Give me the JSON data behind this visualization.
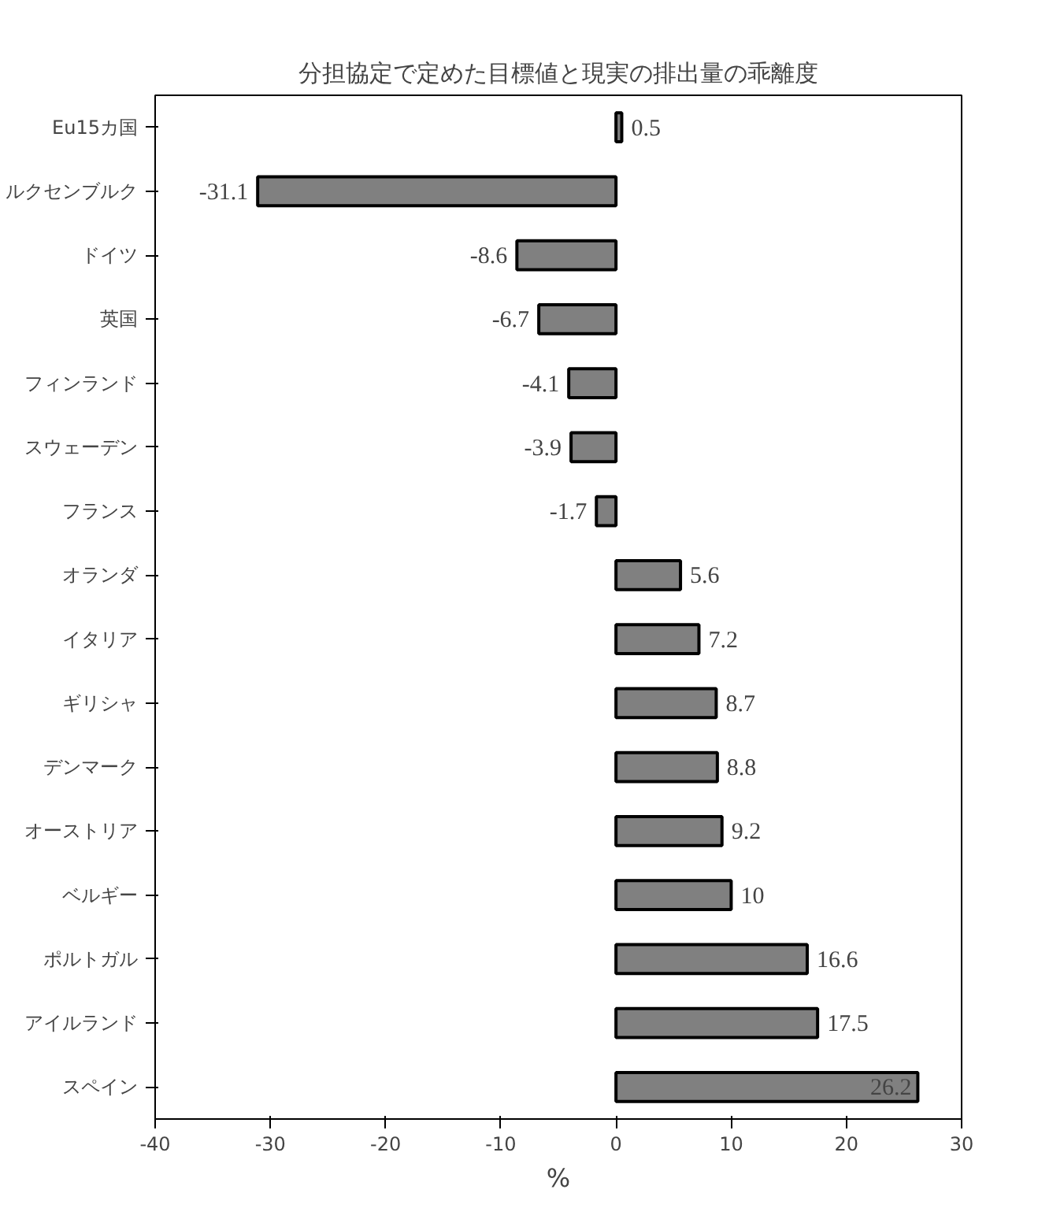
{
  "chart_data": {
    "type": "bar",
    "orientation": "horizontal",
    "title": "分担協定で定めた目標値と現実の排出量の乖離度",
    "xlabel": "%",
    "categories": [
      "Eu15カ国",
      "ルクセンブルク",
      "ドイツ",
      "英国",
      "フィンランド",
      "スウェーデン",
      "フランス",
      "オランダ",
      "イタリア",
      "ギリシャ",
      "デンマーク",
      "オーストリア",
      "ベルギー",
      "ポルトガル",
      "アイルランド",
      "スペイン"
    ],
    "values": [
      0.5,
      -31.1,
      -8.6,
      -6.7,
      -4.1,
      -3.9,
      -1.7,
      5.6,
      7.2,
      8.7,
      8.8,
      9.2,
      10,
      16.6,
      17.5,
      26.2
    ],
    "color": "#808080",
    "xlim": [
      -40,
      30
    ],
    "xticks": [
      -40,
      -30,
      -20,
      -10,
      0,
      10,
      20,
      30
    ],
    "grid": false,
    "data_labels": true
  }
}
